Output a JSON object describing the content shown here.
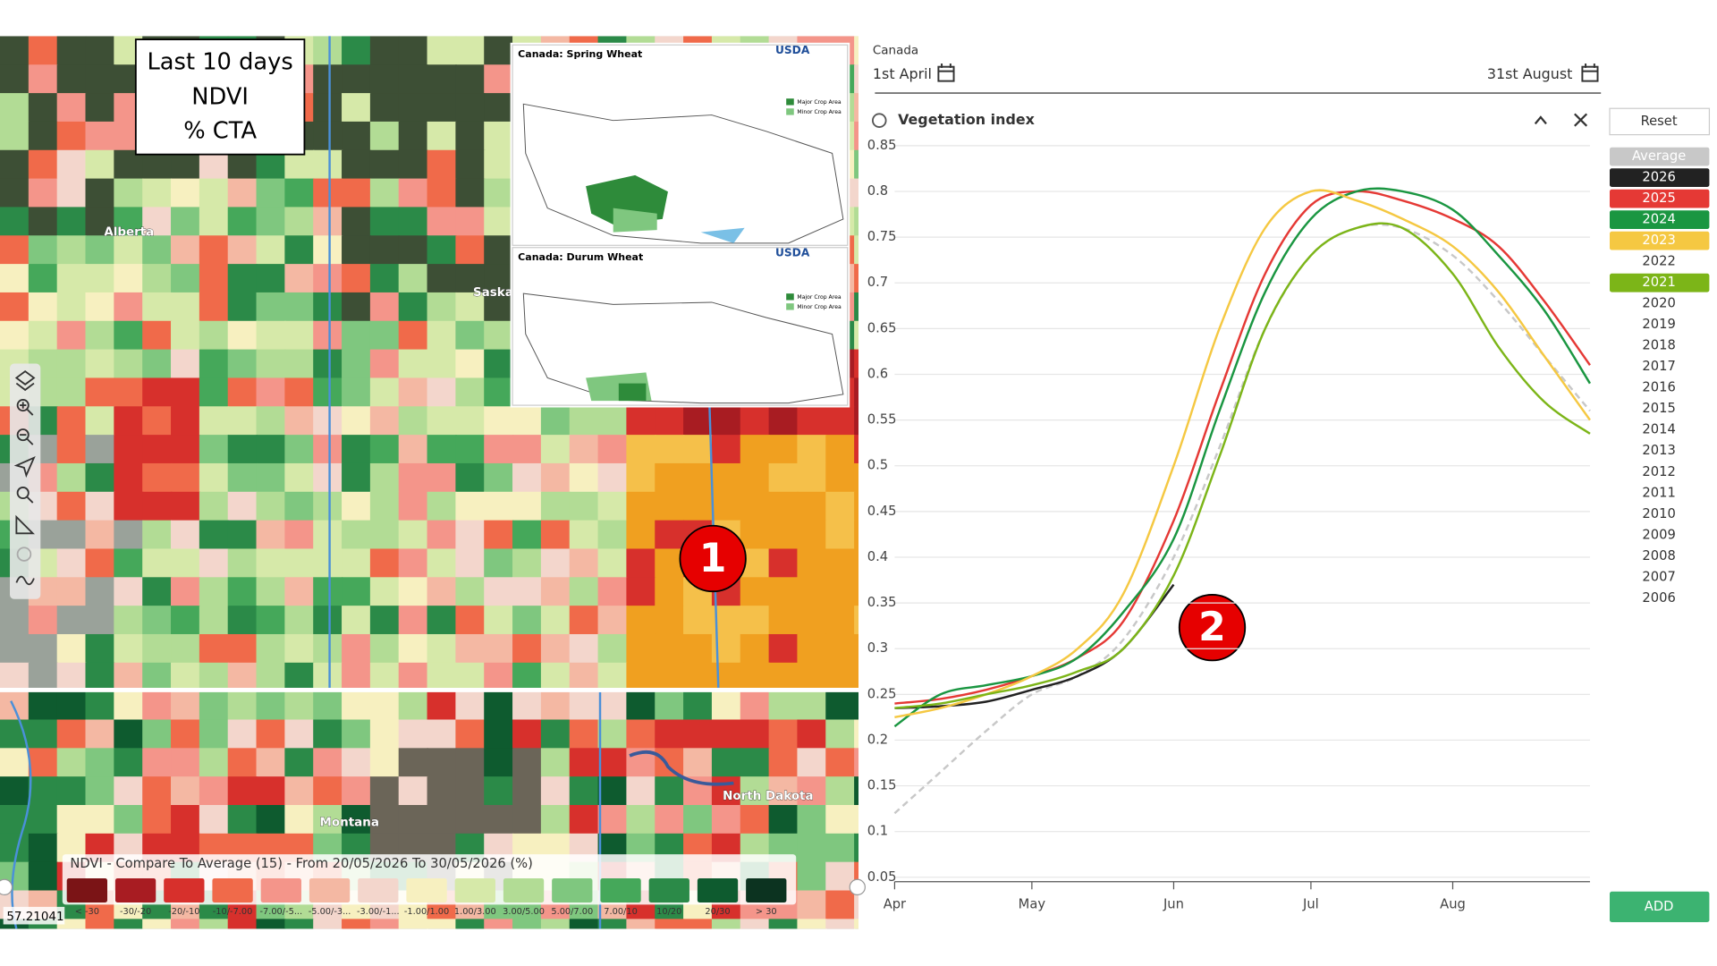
{
  "overlay": {
    "lines": [
      "Last 10 days",
      "NDVI",
      "% CTA"
    ]
  },
  "map": {
    "place_labels": [
      "Alberta",
      "Saska",
      "Montana",
      "North Dakota"
    ],
    "coordinates": "57.21041",
    "legend": {
      "title": "NDVI - Compare To Average (15) - From 20/05/2026 To 30/05/2026 (%)",
      "items": [
        {
          "label": "< -30",
          "color": "#7b1416"
        },
        {
          "label": "-30/-20",
          "color": "#a81c22"
        },
        {
          "label": "-20/-10",
          "color": "#d7302c"
        },
        {
          "label": "-10/-7.00",
          "color": "#f06a4a"
        },
        {
          "label": "-7.00/-5...",
          "color": "#f4958a"
        },
        {
          "label": "-5.00/-3...",
          "color": "#f4b8a3"
        },
        {
          "label": "-3.00/-1...",
          "color": "#f3d6cc"
        },
        {
          "label": "-1.00/1.00",
          "color": "#f7f0c0"
        },
        {
          "label": "1.00/3.00",
          "color": "#d6e9a9"
        },
        {
          "label": "3.00/5.00",
          "color": "#b2dc95"
        },
        {
          "label": "5.00/7.00",
          "color": "#7fc77f"
        },
        {
          "label": "7.00/10",
          "color": "#45a85a"
        },
        {
          "label": "10/20",
          "color": "#2b8a48"
        },
        {
          "label": "20/30",
          "color": "#0e5b2f"
        },
        {
          "label": "> 30",
          "color": "#0c3320"
        }
      ]
    }
  },
  "inset": {
    "maps": [
      {
        "title": "Canada:  Spring Wheat",
        "agency": "USDA",
        "major": "Major Crop Area",
        "minor": "Minor Crop Area"
      },
      {
        "title": "Canada:  Durum Wheat",
        "agency": "USDA",
        "major": "Major Crop Area",
        "minor": "Minor Crop Area"
      }
    ]
  },
  "markers": [
    "1",
    "2"
  ],
  "controls": {
    "region": "Canada",
    "start": "1st April",
    "end": "31st August",
    "panel_title": "Vegetation index",
    "reset": "Reset",
    "add": "ADD"
  },
  "chart_data": {
    "type": "line",
    "x": [
      0,
      10,
      20,
      30,
      40,
      50,
      61,
      71,
      81,
      91,
      101,
      111,
      122,
      132,
      142,
      152
    ],
    "xlim": [
      0,
      152
    ],
    "xticks": [
      {
        "value": 0,
        "label": "Apr"
      },
      {
        "value": 30,
        "label": "May"
      },
      {
        "value": 61,
        "label": "Jun"
      },
      {
        "value": 91,
        "label": "Jul"
      },
      {
        "value": 122,
        "label": "Aug"
      }
    ],
    "ylim": [
      0.05,
      0.85
    ],
    "yticks": [
      0.05,
      0.1,
      0.15,
      0.2,
      0.25,
      0.3,
      0.35,
      0.4,
      0.45,
      0.5,
      0.55,
      0.6,
      0.65,
      0.7,
      0.75,
      0.8,
      0.85
    ],
    "grid": true,
    "series": [
      {
        "name": "Average",
        "color": "#c8c8c8",
        "dashed": true,
        "values": [
          0.12,
          0.165,
          0.21,
          0.25,
          0.27,
          0.31,
          0.4,
          0.52,
          0.65,
          0.73,
          0.76,
          0.76,
          0.73,
          0.68,
          0.62,
          0.56
        ]
      },
      {
        "name": "2026",
        "color": "#222222",
        "dashed": false,
        "values": [
          0.235,
          0.237,
          0.242,
          0.255,
          0.27,
          0.3,
          0.37,
          null,
          null,
          null,
          null,
          null,
          null,
          null,
          null,
          null
        ]
      },
      {
        "name": "2025",
        "color": "#e53935",
        "dashed": false,
        "values": [
          0.24,
          0.245,
          0.255,
          0.27,
          0.29,
          0.33,
          0.44,
          0.58,
          0.71,
          0.785,
          0.8,
          0.79,
          0.77,
          0.74,
          0.68,
          0.61
        ]
      },
      {
        "name": "2024",
        "color": "#1a9641",
        "dashed": false,
        "values": [
          0.215,
          0.25,
          0.26,
          0.27,
          0.29,
          0.34,
          0.42,
          0.56,
          0.69,
          0.77,
          0.8,
          0.8,
          0.78,
          0.73,
          0.67,
          0.59
        ]
      },
      {
        "name": "2023",
        "color": "#f5c842",
        "dashed": false,
        "values": [
          0.225,
          0.235,
          0.25,
          0.27,
          0.3,
          0.36,
          0.5,
          0.65,
          0.76,
          0.8,
          0.79,
          0.77,
          0.74,
          0.69,
          0.62,
          0.55
        ]
      },
      {
        "name": "2021",
        "color": "#7cb518",
        "dashed": false,
        "values": [
          0.235,
          0.24,
          0.25,
          0.26,
          0.275,
          0.3,
          0.38,
          0.51,
          0.65,
          0.73,
          0.76,
          0.76,
          0.71,
          0.63,
          0.57,
          0.535
        ]
      }
    ],
    "inactive_years": [
      "2022",
      "2020",
      "2019",
      "2018",
      "2017",
      "2016",
      "2015",
      "2014",
      "2013",
      "2012",
      "2011",
      "2010",
      "2009",
      "2008",
      "2007",
      "2006"
    ]
  }
}
